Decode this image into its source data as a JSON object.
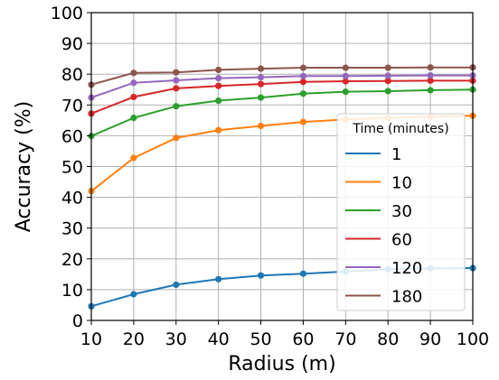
{
  "chart_data": {
    "type": "line",
    "title": "",
    "xlabel": "Radius (m)",
    "ylabel": "Accuracy (%)",
    "xlim": [
      10,
      100
    ],
    "ylim": [
      0,
      100
    ],
    "xticks": [
      10,
      20,
      30,
      40,
      50,
      60,
      70,
      80,
      90,
      100
    ],
    "yticks": [
      0,
      10,
      20,
      30,
      40,
      50,
      60,
      70,
      80,
      90,
      100
    ],
    "grid": true,
    "legend": {
      "title": "Time (minutes)",
      "position": "right"
    },
    "x": [
      10,
      20,
      30,
      40,
      50,
      60,
      70,
      80,
      90,
      100
    ],
    "series": [
      {
        "name": "1",
        "color": "#1f77b4",
        "values": [
          4.6,
          8.5,
          11.6,
          13.4,
          14.6,
          15.2,
          15.9,
          16.6,
          16.9,
          17.0
        ]
      },
      {
        "name": "10",
        "color": "#ff7f0e",
        "values": [
          42.0,
          52.8,
          59.3,
          61.8,
          63.2,
          64.5,
          65.3,
          65.8,
          66.2,
          66.5
        ]
      },
      {
        "name": "30",
        "color": "#2ca02c",
        "values": [
          59.9,
          65.8,
          69.6,
          71.4,
          72.4,
          73.7,
          74.3,
          74.5,
          74.8,
          75.0
        ]
      },
      {
        "name": "60",
        "color": "#d62728",
        "values": [
          67.2,
          72.6,
          75.4,
          76.2,
          76.8,
          77.5,
          77.7,
          77.8,
          77.9,
          77.9
        ]
      },
      {
        "name": "120",
        "color": "#9467bd",
        "values": [
          72.4,
          77.2,
          78.0,
          78.7,
          79.0,
          79.4,
          79.4,
          79.5,
          79.6,
          79.6
        ]
      },
      {
        "name": "180",
        "color": "#8c564b",
        "values": [
          76.6,
          80.4,
          80.6,
          81.4,
          81.8,
          82.1,
          82.1,
          82.1,
          82.2,
          82.2
        ]
      }
    ]
  }
}
